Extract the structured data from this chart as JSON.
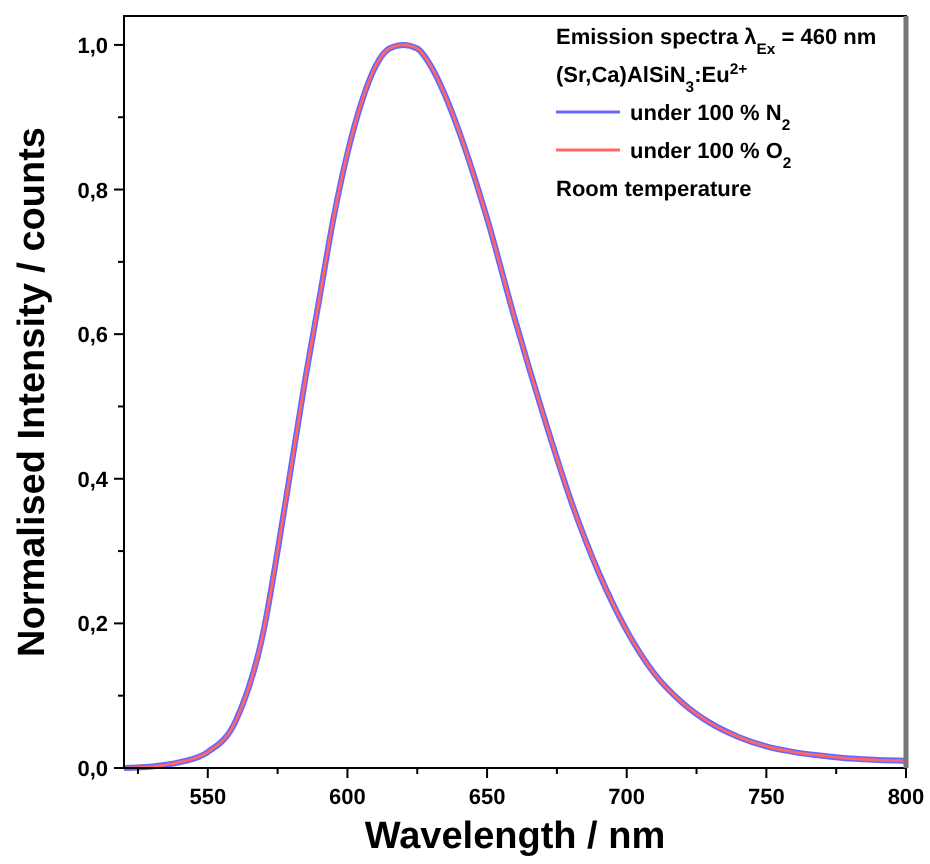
{
  "chart_data": {
    "type": "line",
    "xlabel": "Wavelength / nm",
    "ylabel": "Normalised Intensity / counts",
    "legend_title": "Emission spectra λ$_{Ex}$ = 460 nm",
    "annotations": [
      "(Sr,Ca)AlSiN$_{3}$:Eu$^{2+}$",
      "Room temperature"
    ],
    "x": [
      520,
      530,
      540,
      550,
      560,
      570,
      575,
      580,
      585,
      590,
      595,
      600,
      605,
      610,
      615,
      620,
      625,
      630,
      635,
      640,
      650,
      660,
      670,
      680,
      690,
      700,
      710,
      720,
      730,
      740,
      750,
      760,
      770,
      780,
      790,
      800
    ],
    "series": [
      {
        "name": "under 100 % N$_{2}$",
        "color": "#6666ff",
        "values": [
          0,
          0.002,
          0.008,
          0.022,
          0.065,
          0.19,
          0.3,
          0.42,
          0.54,
          0.65,
          0.76,
          0.85,
          0.92,
          0.97,
          0.995,
          1.0,
          0.995,
          0.97,
          0.93,
          0.88,
          0.76,
          0.62,
          0.49,
          0.37,
          0.27,
          0.19,
          0.13,
          0.09,
          0.062,
          0.043,
          0.03,
          0.022,
          0.017,
          0.013,
          0.011,
          0.01
        ]
      },
      {
        "name": "under 100 % O$_{2}$",
        "color": "#ff6666",
        "values": [
          0,
          0.002,
          0.008,
          0.022,
          0.065,
          0.19,
          0.3,
          0.42,
          0.54,
          0.65,
          0.76,
          0.85,
          0.92,
          0.97,
          0.995,
          1.0,
          0.995,
          0.97,
          0.93,
          0.88,
          0.76,
          0.62,
          0.49,
          0.37,
          0.27,
          0.19,
          0.13,
          0.09,
          0.062,
          0.043,
          0.03,
          0.022,
          0.017,
          0.013,
          0.011,
          0.01
        ]
      }
    ],
    "xlim": [
      520,
      800
    ],
    "xticks": [
      {
        "value": 525,
        "label": null
      },
      550,
      {
        "value": 575,
        "label": null
      },
      600,
      {
        "value": 625,
        "label": null
      },
      650,
      {
        "value": 675,
        "label": null
      },
      700,
      {
        "value": 725,
        "label": null
      },
      750,
      {
        "value": 775,
        "label": null
      },
      800
    ],
    "ylim": [
      0,
      1.04
    ],
    "yticks": [
      {
        "value": 0,
        "label": "0,0"
      },
      {
        "value": 0.1,
        "label": null
      },
      {
        "value": 0.2,
        "label": "0,2"
      },
      {
        "value": 0.3,
        "label": null
      },
      {
        "value": 0.4,
        "label": "0,4"
      },
      {
        "value": 0.5,
        "label": null
      },
      {
        "value": 0.6,
        "label": "0,6"
      },
      {
        "value": 0.7,
        "label": null
      },
      {
        "value": 0.8,
        "label": "0,8"
      },
      {
        "value": 0.9,
        "label": null
      },
      {
        "value": 1.0,
        "label": "1,0"
      }
    ],
    "legend": "top right",
    "grid": false,
    "marker": "none",
    "line_style": "solid"
  }
}
